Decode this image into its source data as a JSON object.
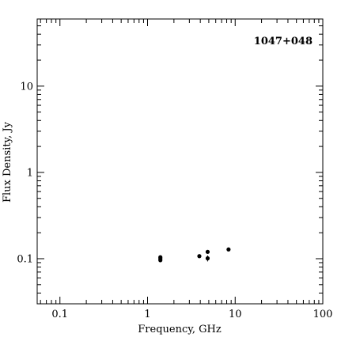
{
  "chart_data": {
    "type": "scatter",
    "title": "1047+048",
    "xlabel": "Frequency, GHz",
    "ylabel": "Flux Density, Jy",
    "x_scale": "log",
    "y_scale": "log",
    "xlim": [
      0.055,
      100
    ],
    "ylim": [
      0.03,
      60
    ],
    "x_ticks": [
      {
        "value": 0.1,
        "label": "0.1"
      },
      {
        "value": 1,
        "label": "1"
      },
      {
        "value": 10,
        "label": "10"
      },
      {
        "value": 100,
        "label": "100"
      }
    ],
    "y_ticks": [
      {
        "value": 0.1,
        "label": "0.1"
      },
      {
        "value": 1,
        "label": "1"
      },
      {
        "value": 10,
        "label": "10"
      }
    ],
    "grid": false,
    "series": [
      {
        "points": [
          {
            "x": 1.4,
            "y": 0.104
          },
          {
            "x": 1.4,
            "y": 0.1
          },
          {
            "x": 1.4,
            "y": 0.096
          },
          {
            "x": 3.9,
            "y": 0.107
          },
          {
            "x": 4.85,
            "y": 0.12
          },
          {
            "x": 4.85,
            "y": 0.101,
            "err": 0.008
          },
          {
            "x": 8.4,
            "y": 0.128
          }
        ]
      }
    ]
  }
}
